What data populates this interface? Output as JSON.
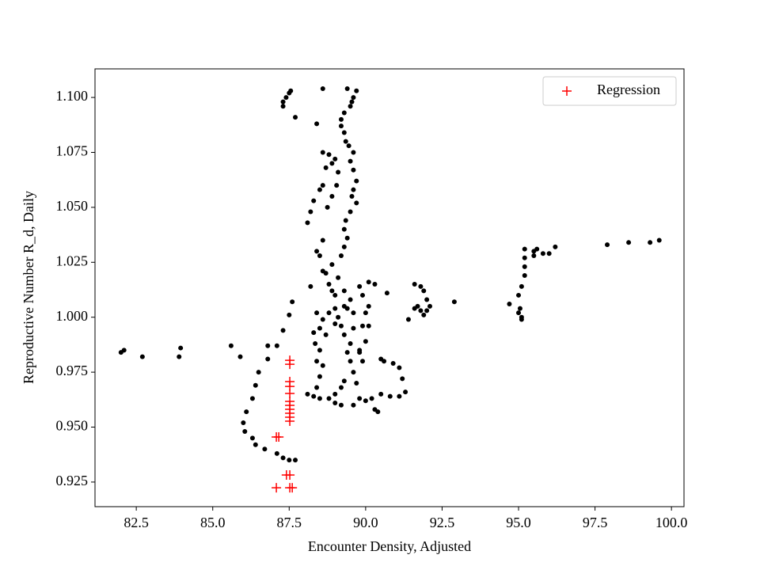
{
  "chart_data": {
    "type": "scatter",
    "xlabel": "Encounter Density, Adjusted",
    "ylabel": "Reproductive Number R_d, Daily",
    "xlim": [
      81.15,
      100.41
    ],
    "ylim": [
      0.9138,
      1.113
    ],
    "xticks": [
      82.5,
      {
        "value": 85,
        "label": "85.0"
      },
      87.5,
      {
        "value": 90,
        "label": "90.0"
      },
      92.5,
      {
        "value": 95,
        "label": "95.0"
      },
      97.5,
      {
        "value": 100,
        "label": "100.0"
      }
    ],
    "yticks": [
      0.925,
      {
        "value": 0.95,
        "label": "0.950"
      },
      0.975,
      {
        "value": 1,
        "label": "1.000"
      },
      1.025,
      {
        "value": 1.05,
        "label": "1.050"
      },
      1.075,
      {
        "value": 1.1,
        "label": "1.100"
      }
    ],
    "legend": "upper right",
    "series": [
      {
        "color": "#000000",
        "marker": "o",
        "x": [
          82.0,
          82.1,
          82.7,
          83.9,
          83.95,
          85.6,
          85.9,
          86.5,
          86.4,
          86.3,
          86.1,
          86.0,
          86.05,
          86.3,
          86.4,
          86.7,
          87.1,
          87.3,
          87.5,
          87.7,
          86.8,
          87.1,
          87.3,
          87.5,
          87.6,
          86.8,
          87.3,
          87.4,
          87.5,
          87.55,
          87.3,
          87.7,
          88.6,
          88.4,
          89.4,
          89.7,
          89.6,
          89.55,
          89.5,
          89.3,
          89.2,
          89.2,
          89.3,
          89.35,
          89.45,
          89.6,
          89.5,
          89.6,
          89.7,
          89.6,
          89.55,
          89.7,
          89.5,
          89.35,
          89.3,
          89.4,
          89.3,
          89.2,
          89.0,
          88.9,
          89.1,
          89.05,
          88.9,
          88.75,
          88.6,
          88.8,
          88.7,
          88.6,
          88.5,
          88.3,
          88.1,
          88.2,
          88.4,
          88.6,
          88.5,
          88.7,
          88.8,
          88.9,
          89.0,
          88.2,
          88.6,
          88.9,
          89.1,
          89.3,
          89.5,
          89.8,
          90.1,
          89.9,
          89.6,
          89.3,
          89.0,
          88.8,
          88.6,
          88.5,
          88.3,
          88.35,
          88.5,
          88.4,
          88.6,
          88.5,
          88.4,
          88.3,
          88.5,
          88.8,
          89.0,
          89.2,
          89.3,
          89.6,
          89.5,
          89.4,
          89.5,
          89.3,
          89.2,
          89.6,
          89.9,
          90.1,
          90.0,
          89.8,
          89.9,
          89.7,
          89.8,
          89.6,
          89.2,
          89.0,
          90.0,
          90.3,
          90.4,
          90.2,
          90.5,
          90.8,
          91.1,
          91.3,
          91.2,
          91.1,
          90.9,
          90.6,
          90.5,
          90.1,
          90.7,
          90.3,
          89.8,
          88.1,
          88.4,
          88.7,
          89.0,
          89.1,
          89.4,
          90.0,
          91.4,
          91.6,
          91.7,
          91.8,
          91.9,
          92.0,
          92.1,
          92.0,
          91.9,
          91.8,
          91.6,
          92.9,
          94.7,
          95.0,
          95.1,
          95.05,
          95.0,
          95.1,
          95.2,
          95.2,
          95.2,
          95.2,
          95.5,
          95.6,
          95.5,
          95.8,
          96.0,
          96.2,
          97.9,
          98.6,
          99.3,
          99.6,
          95.1
        ],
        "y": [
          0.984,
          0.985,
          0.982,
          0.982,
          0.986,
          0.987,
          0.982,
          0.975,
          0.969,
          0.963,
          0.957,
          0.952,
          0.948,
          0.945,
          0.942,
          0.94,
          0.938,
          0.936,
          0.935,
          0.935,
          0.987,
          0.987,
          0.994,
          1.001,
          1.007,
          0.981,
          1.098,
          1.1,
          1.102,
          1.103,
          1.096,
          1.091,
          1.104,
          1.088,
          1.104,
          1.103,
          1.1,
          1.098,
          1.096,
          1.093,
          1.09,
          1.087,
          1.084,
          1.08,
          1.078,
          1.075,
          1.071,
          1.067,
          1.062,
          1.058,
          1.055,
          1.052,
          1.048,
          1.044,
          1.04,
          1.036,
          1.032,
          1.028,
          1.072,
          1.07,
          1.066,
          1.06,
          1.055,
          1.05,
          1.075,
          1.074,
          1.068,
          1.06,
          1.058,
          1.053,
          1.043,
          1.048,
          1.03,
          1.035,
          1.028,
          1.02,
          1.015,
          1.012,
          1.01,
          1.014,
          1.021,
          1.024,
          1.018,
          1.012,
          1.008,
          1.014,
          1.016,
          1.01,
          1.002,
          1.005,
          1.004,
          1.002,
          0.999,
          0.995,
          0.993,
          0.988,
          0.985,
          0.98,
          0.978,
          0.973,
          0.968,
          0.964,
          0.963,
          0.963,
          0.965,
          0.968,
          0.971,
          0.975,
          0.98,
          0.984,
          0.988,
          0.992,
          0.996,
          0.995,
          0.996,
          0.996,
          0.989,
          0.985,
          0.98,
          0.97,
          0.963,
          0.96,
          0.96,
          0.961,
          0.962,
          0.958,
          0.957,
          0.963,
          0.965,
          0.964,
          0.964,
          0.966,
          0.972,
          0.977,
          0.979,
          0.98,
          0.981,
          1.005,
          1.011,
          1.015,
          0.984,
          0.965,
          1.002,
          0.992,
          0.997,
          1.0,
          1.004,
          1.002,
          0.999,
          1.004,
          1.005,
          1.003,
          1.001,
          1.003,
          1.005,
          1.008,
          1.012,
          1.014,
          1.015,
          1.007,
          1.006,
          1.002,
          1.0,
          1.004,
          1.01,
          1.014,
          1.019,
          1.023,
          1.027,
          1.031,
          1.03,
          1.031,
          1.028,
          1.029,
          1.029,
          1.032,
          1.033,
          1.034,
          1.034,
          1.035,
          0.999
        ]
      },
      {
        "name": "Regression",
        "color": "#ff0000",
        "marker": "+",
        "x": [
          87.08,
          87.52,
          87.6,
          87.08,
          87.16,
          87.41,
          87.52,
          87.52,
          87.52,
          87.52,
          87.52,
          87.52,
          87.52,
          87.52,
          87.52,
          87.52,
          87.52,
          87.52
        ],
        "y": [
          0.9224,
          0.9224,
          0.9224,
          0.9455,
          0.9455,
          0.9282,
          0.9282,
          0.9804,
          0.9786,
          0.9707,
          0.9685,
          0.9653,
          0.9617,
          0.9599,
          0.9581,
          0.9563,
          0.9545,
          0.9527
        ]
      }
    ]
  }
}
